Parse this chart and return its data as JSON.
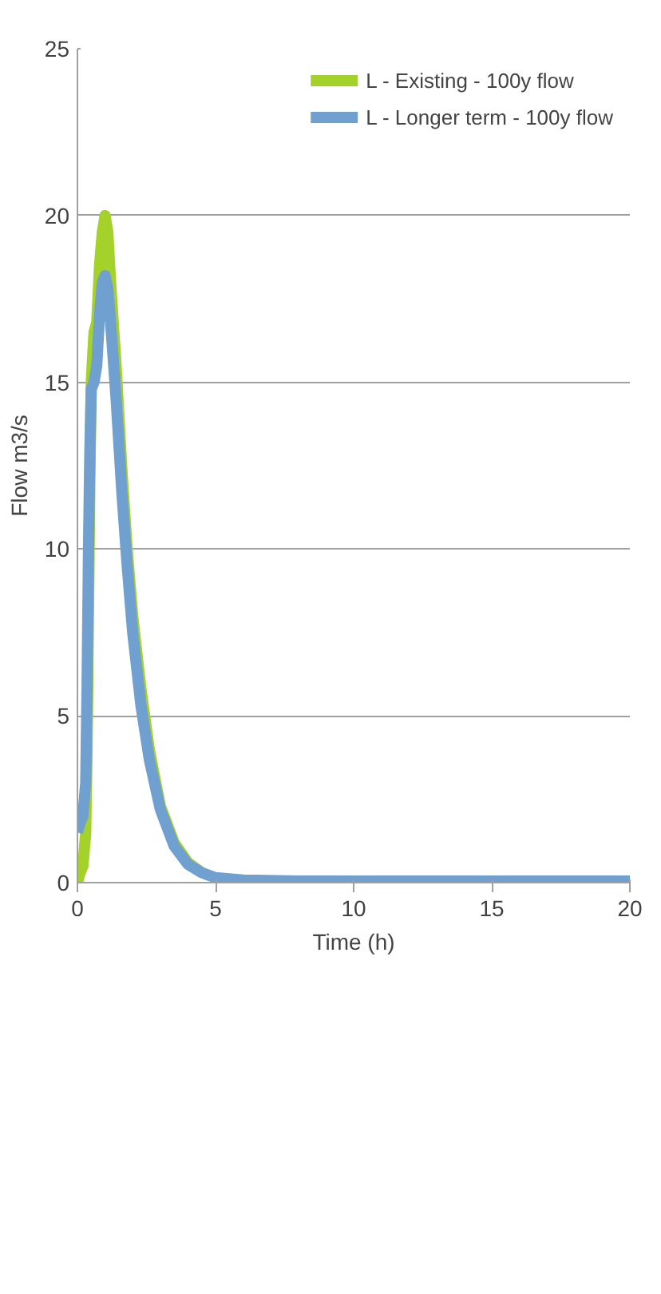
{
  "chart_data": {
    "type": "line",
    "xlabel": "Time (h)",
    "ylabel": "Flow m3/s",
    "x": [
      0,
      0.1,
      0.2,
      0.3,
      0.35,
      0.4,
      0.45,
      0.5,
      0.6,
      0.7,
      0.8,
      0.9,
      1.0,
      1.1,
      1.2,
      1.4,
      1.6,
      1.8,
      2.0,
      2.3,
      2.6,
      3.0,
      3.5,
      4.0,
      4.5,
      5,
      6,
      8,
      10,
      15,
      20
    ],
    "series": [
      {
        "name": "L - Existing - 100y flow",
        "color": "#a5d22a",
        "x": [
          0,
          0.1,
          0.2,
          0.3,
          0.35,
          0.4,
          0.45,
          0.5,
          0.6,
          0.7,
          0.8,
          0.9,
          1.0,
          1.1,
          1.2,
          1.4,
          1.6,
          1.8,
          2.0,
          2.3,
          2.6,
          3.0,
          3.5,
          4.0,
          4.5
        ],
        "values": [
          0,
          0.3,
          0.5,
          1.5,
          4,
          8,
          12,
          15,
          16.5,
          16.8,
          18.5,
          19.5,
          20,
          19.5,
          18,
          15.5,
          12.5,
          10,
          8,
          5.8,
          4,
          2.3,
          1.2,
          0.6,
          0.3
        ]
      },
      {
        "name": "L - Longer term - 100y flow",
        "color": "#6fa0cf",
        "values": [
          1.5,
          1.8,
          2,
          3,
          6,
          10,
          13,
          14.8,
          15,
          15.5,
          17,
          18,
          18.2,
          17.8,
          16.8,
          14.5,
          11.8,
          9.5,
          7.5,
          5.3,
          3.7,
          2.2,
          1.1,
          0.55,
          0.3,
          0.15,
          0.08,
          0.05,
          0.05,
          0.05,
          0.05
        ]
      }
    ],
    "xlim": [
      0,
      20
    ],
    "xticks": [
      0,
      5,
      10,
      15,
      20
    ],
    "ylim": [
      0,
      25
    ],
    "yticks": [
      0,
      5,
      10,
      15,
      20,
      25
    ],
    "grid": "y",
    "legend": "right",
    "line_style": "solid"
  }
}
